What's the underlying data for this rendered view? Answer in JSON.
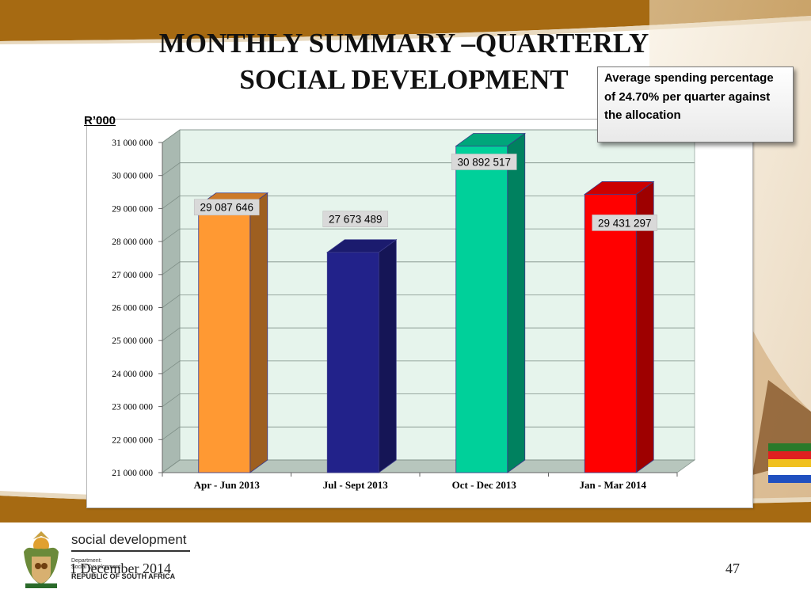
{
  "slide": {
    "title_line1": "MONTHLY SUMMARY –QUARTERLY",
    "title_line2": "SOCIAL DEVELOPMENT",
    "callout": "Average spending percentage of 24.70% per quarter against the allocation",
    "footer_date": "1 December 2014",
    "page_number": "47"
  },
  "logo": {
    "brand": "social development",
    "department_line1": "Department:",
    "department_line2": "Social Development",
    "country": "REPUBLIC OF SOUTH AFRICA"
  },
  "colors": {
    "header_band": "#a66a12",
    "plot_back": "#e6f4ec",
    "plot_side": "#a9b9b1"
  },
  "chart_data": {
    "type": "bar",
    "unit_label": "R’000",
    "categories": [
      "Apr - Jun 2013",
      "Jul - Sept 2013",
      "Oct - Dec 2013",
      "Jan - Mar 2014"
    ],
    "values": [
      29087646,
      27673489,
      30892517,
      29431297
    ],
    "data_labels": [
      "29 087 646",
      "27 673 489",
      "30 892 517",
      "29 431 297"
    ],
    "bar_colors": [
      "#ff9933",
      "#22228a",
      "#00d09a",
      "#ff0000"
    ],
    "ylim": [
      21000000,
      31000000
    ],
    "yticks": [
      "31 000 000",
      "30 000 000",
      "29 000 000",
      "28 000 000",
      "27 000 000",
      "26 000 000",
      "25 000 000",
      "24 000 000",
      "23 000 000",
      "22 000 000",
      "21 000 000"
    ],
    "ytick_values": [
      31000000,
      30000000,
      29000000,
      28000000,
      27000000,
      26000000,
      25000000,
      24000000,
      23000000,
      22000000,
      21000000
    ],
    "grid": true,
    "legend": "none"
  }
}
